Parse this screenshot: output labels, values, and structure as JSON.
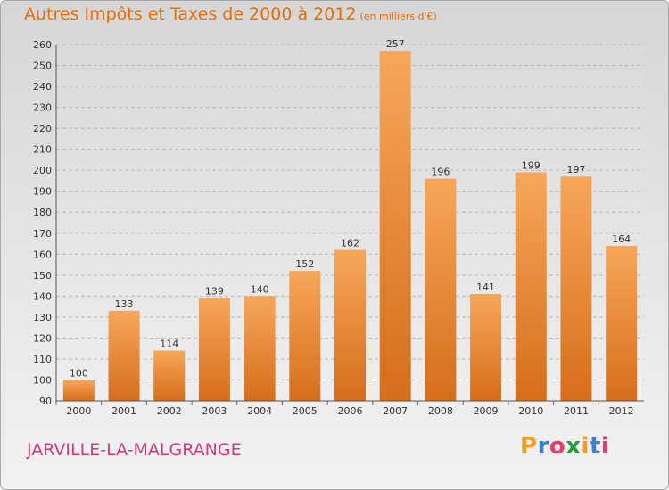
{
  "header": {
    "title": "Autres Impôts et Taxes de 2000 à 2012",
    "subtitle": "(en milliers d'€)"
  },
  "footer": {
    "town": "JARVILLE-LA-MALGRANGE",
    "logo_letters": [
      "P",
      "r",
      "o",
      "x",
      "i",
      "t",
      "i"
    ],
    "logo_colors": [
      "#f0a020",
      "#3a7fd0",
      "#e04070",
      "#2a9a40",
      "#f0a020",
      "#3a7fd0",
      "#e04070"
    ]
  },
  "colors": {
    "bar_top": "#f6a75a",
    "bar_bottom": "#d66e1a",
    "grid": "#b8b8b8",
    "text": "#333333"
  },
  "chart_data": {
    "type": "bar",
    "title": "Autres Impôts et Taxes de 2000 à 2012",
    "subtitle": "(en milliers d'€)",
    "categories": [
      "2000",
      "2001",
      "2002",
      "2003",
      "2004",
      "2005",
      "2006",
      "2007",
      "2008",
      "2009",
      "2010",
      "2011",
      "2012"
    ],
    "values": [
      100,
      133,
      114,
      139,
      140,
      152,
      162,
      257,
      196,
      141,
      199,
      197,
      164
    ],
    "ylim": [
      90,
      260
    ],
    "yticks": [
      90,
      100,
      110,
      120,
      130,
      140,
      150,
      160,
      170,
      180,
      190,
      200,
      210,
      220,
      230,
      240,
      250,
      260
    ],
    "grid": true,
    "xlabel": "",
    "ylabel": ""
  }
}
